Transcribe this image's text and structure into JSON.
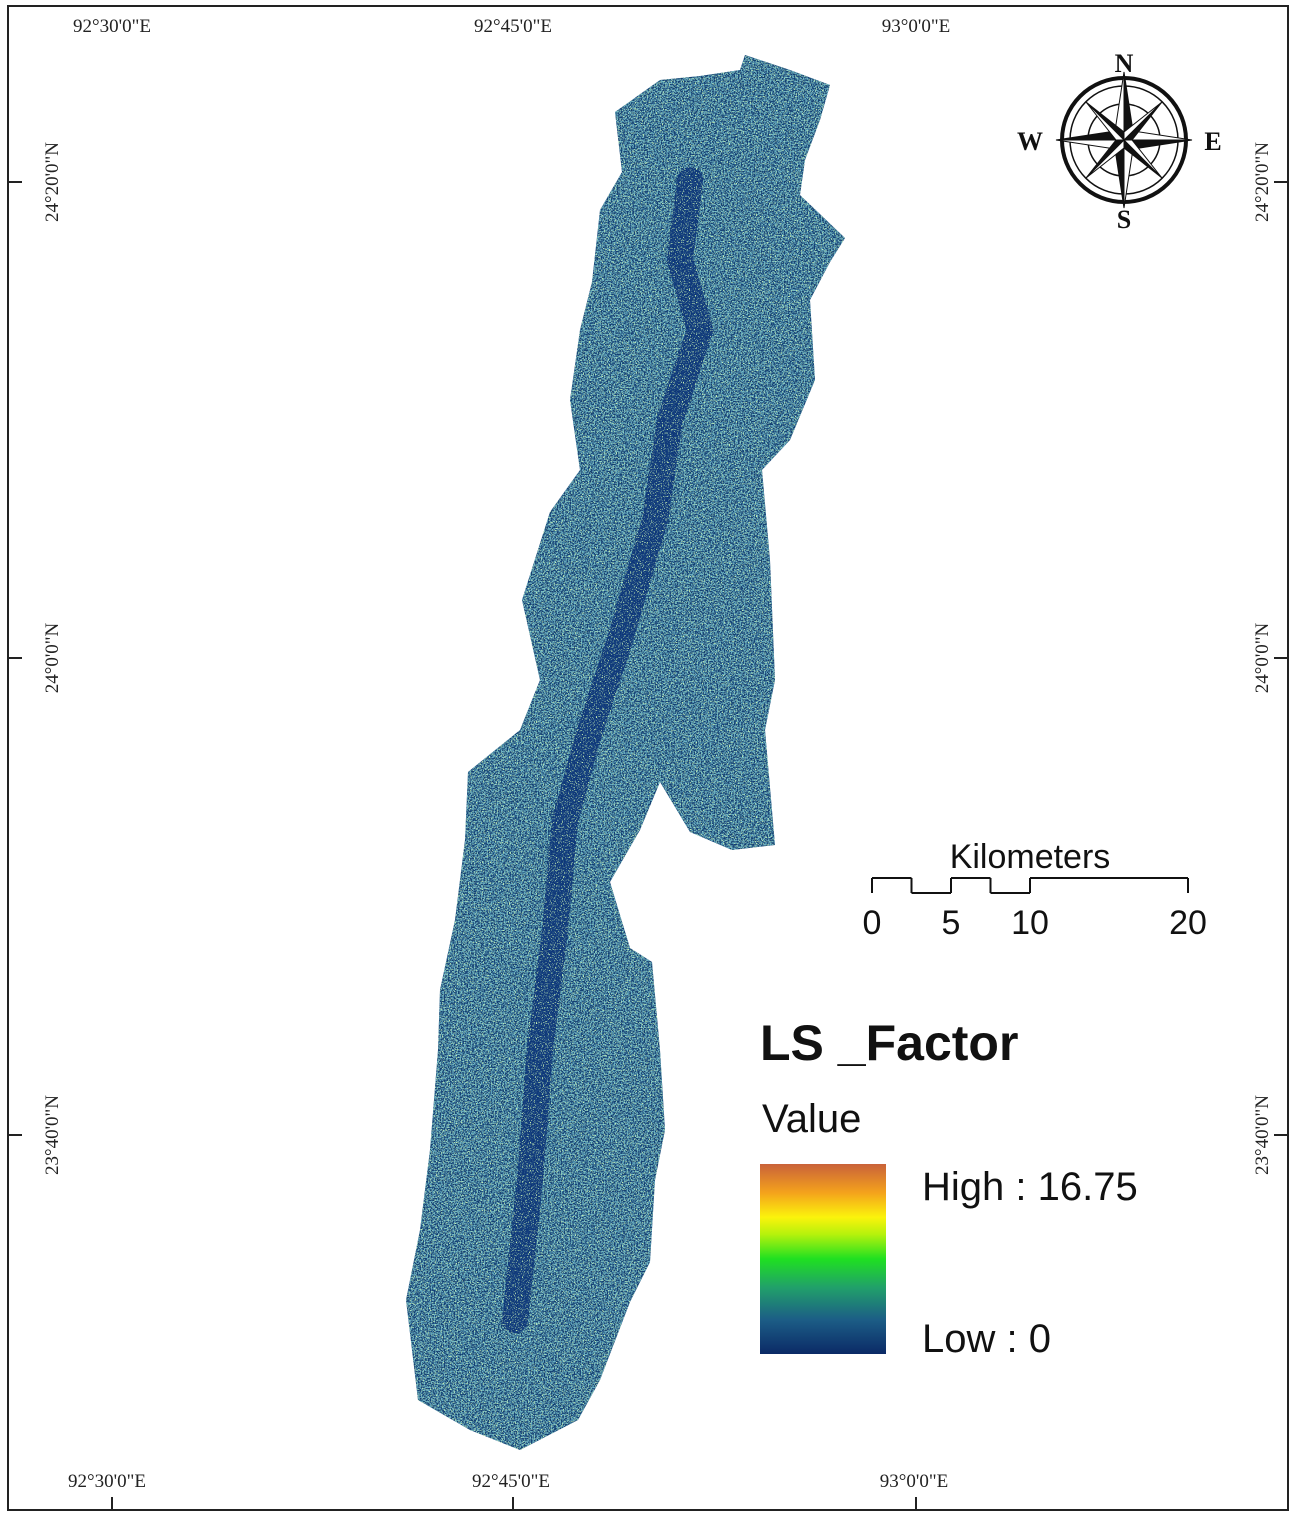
{
  "map": {
    "top_labels": [
      "92°30'0\"E",
      "92°45'0\"E",
      "93°0'0\"E"
    ],
    "bottom_labels": [
      "92°30'0\"E",
      "92°45'0\"E",
      "93°0'0\"E"
    ],
    "left_labels": [
      "24°20'0\"N",
      "24°0'0\"N",
      "23°40'0\"N"
    ],
    "right_labels": [
      "24°20'0\"N",
      "24°0'0\"N",
      "23°40'0\"N"
    ],
    "compass": {
      "n": "N",
      "s": "S",
      "e": "E",
      "w": "W"
    },
    "scale_bar": {
      "unit": "Kilometers",
      "ticks": [
        0,
        5,
        10,
        20
      ]
    },
    "legend": {
      "title": "LS _Factor",
      "subtitle": "Value",
      "high": "High : 16.75",
      "low": "Low : 0"
    }
  }
}
